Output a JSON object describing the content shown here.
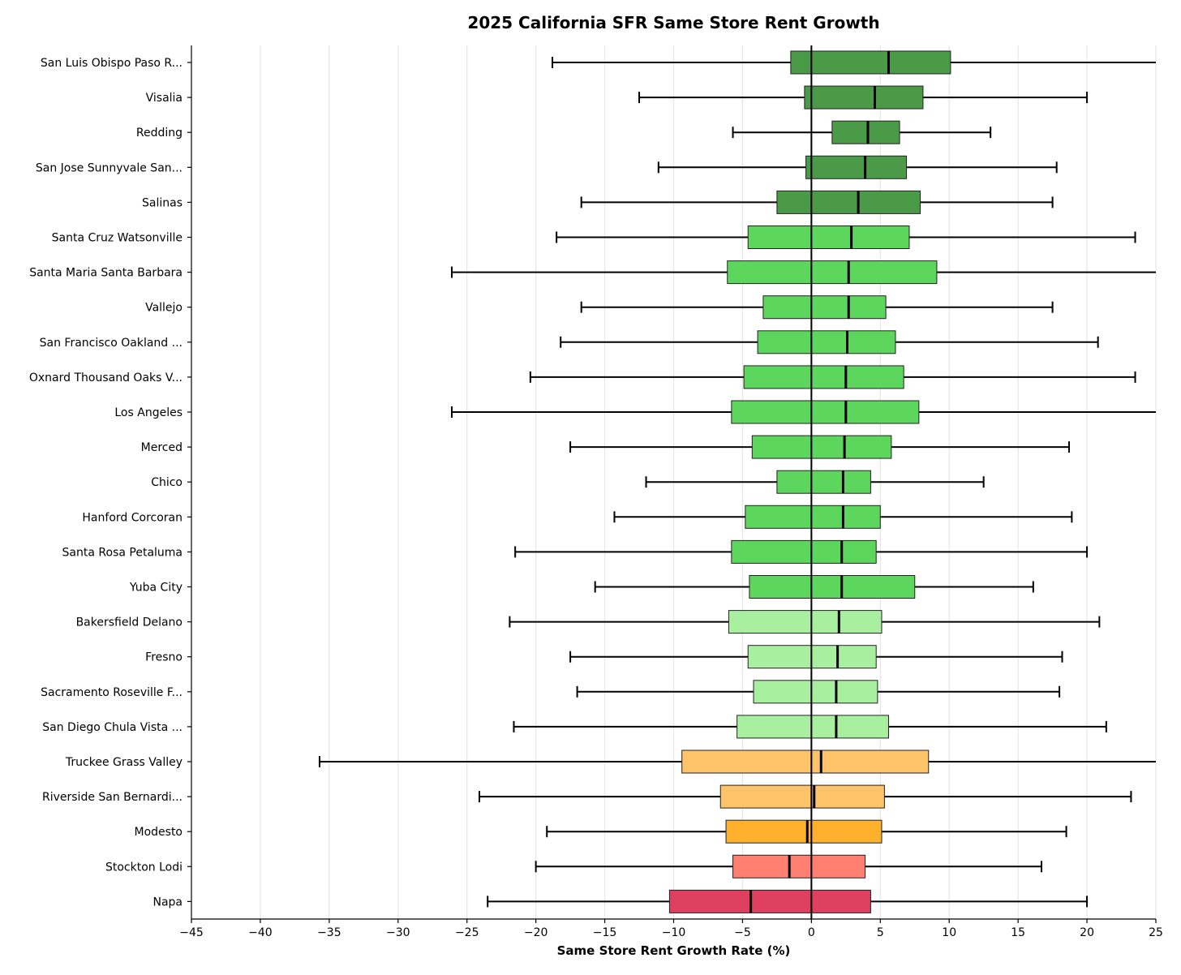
{
  "chart_data": {
    "type": "boxplot-horizontal",
    "title": "2025 California SFR Same Store Rent Growth",
    "xlabel": "Same Store Rent Growth Rate (%)",
    "ylabel": "",
    "xlim": [
      -45,
      25
    ],
    "xticks": [
      -45,
      -40,
      -35,
      -30,
      -25,
      -20,
      -15,
      -10,
      -5,
      0,
      5,
      10,
      15,
      20,
      25
    ],
    "grid": "vertical",
    "colors": {
      "dark_green": "#4a9a48",
      "green": "#5cd65c",
      "light_green": "#a8f0a0",
      "light_orange": "#ffc46a",
      "orange": "#ffb12e",
      "salmon": "#ff8070",
      "crimson": "#e0405f"
    },
    "rows": [
      {
        "name": "San Luis Obispo Paso R...",
        "whisker_low": -18.8,
        "q1": -1.5,
        "median": 5.6,
        "q3": 10.1,
        "whisker_high": 25,
        "color": "dark_green"
      },
      {
        "name": "Visalia",
        "whisker_low": -12.5,
        "q1": -0.5,
        "median": 4.6,
        "q3": 8.1,
        "whisker_high": 20.0,
        "color": "dark_green"
      },
      {
        "name": "Redding",
        "whisker_low": -5.7,
        "q1": 1.5,
        "median": 4.1,
        "q3": 6.4,
        "whisker_high": 13.0,
        "color": "dark_green"
      },
      {
        "name": "San Jose Sunnyvale San...",
        "whisker_low": -11.1,
        "q1": -0.4,
        "median": 3.9,
        "q3": 6.9,
        "whisker_high": 17.8,
        "color": "dark_green"
      },
      {
        "name": "Salinas",
        "whisker_low": -16.7,
        "q1": -2.5,
        "median": 3.4,
        "q3": 7.9,
        "whisker_high": 17.5,
        "color": "dark_green"
      },
      {
        "name": "Santa Cruz Watsonville",
        "whisker_low": -18.5,
        "q1": -4.6,
        "median": 2.9,
        "q3": 7.1,
        "whisker_high": 23.5,
        "color": "green"
      },
      {
        "name": "Santa Maria Santa Barbara",
        "whisker_low": -26.1,
        "q1": -6.1,
        "median": 2.7,
        "q3": 9.1,
        "whisker_high": 25,
        "color": "green"
      },
      {
        "name": "Vallejo",
        "whisker_low": -16.7,
        "q1": -3.5,
        "median": 2.7,
        "q3": 5.4,
        "whisker_high": 17.5,
        "color": "green"
      },
      {
        "name": "San Francisco Oakland ...",
        "whisker_low": -18.2,
        "q1": -3.9,
        "median": 2.6,
        "q3": 6.1,
        "whisker_high": 20.8,
        "color": "green"
      },
      {
        "name": "Oxnard Thousand Oaks V...",
        "whisker_low": -20.4,
        "q1": -4.9,
        "median": 2.5,
        "q3": 6.7,
        "whisker_high": 23.5,
        "color": "green"
      },
      {
        "name": "Los Angeles",
        "whisker_low": -26.1,
        "q1": -5.8,
        "median": 2.5,
        "q3": 7.8,
        "whisker_high": 25,
        "color": "green"
      },
      {
        "name": "Merced",
        "whisker_low": -17.5,
        "q1": -4.3,
        "median": 2.4,
        "q3": 5.8,
        "whisker_high": 18.7,
        "color": "green"
      },
      {
        "name": "Chico",
        "whisker_low": -12.0,
        "q1": -2.5,
        "median": 2.3,
        "q3": 4.3,
        "whisker_high": 12.5,
        "color": "green"
      },
      {
        "name": "Hanford Corcoran",
        "whisker_low": -14.3,
        "q1": -4.8,
        "median": 2.3,
        "q3": 5.0,
        "whisker_high": 18.9,
        "color": "green"
      },
      {
        "name": "Santa Rosa Petaluma",
        "whisker_low": -21.5,
        "q1": -5.8,
        "median": 2.2,
        "q3": 4.7,
        "whisker_high": 20.0,
        "color": "green"
      },
      {
        "name": "Yuba City",
        "whisker_low": -15.7,
        "q1": -4.5,
        "median": 2.2,
        "q3": 7.5,
        "whisker_high": 16.1,
        "color": "green"
      },
      {
        "name": "Bakersfield Delano",
        "whisker_low": -21.9,
        "q1": -6.0,
        "median": 2.0,
        "q3": 5.1,
        "whisker_high": 20.9,
        "color": "light_green"
      },
      {
        "name": "Fresno",
        "whisker_low": -17.5,
        "q1": -4.6,
        "median": 1.9,
        "q3": 4.7,
        "whisker_high": 18.2,
        "color": "light_green"
      },
      {
        "name": "Sacramento Roseville F...",
        "whisker_low": -17.0,
        "q1": -4.2,
        "median": 1.8,
        "q3": 4.8,
        "whisker_high": 18.0,
        "color": "light_green"
      },
      {
        "name": "San Diego Chula Vista ...",
        "whisker_low": -21.6,
        "q1": -5.4,
        "median": 1.8,
        "q3": 5.6,
        "whisker_high": 21.4,
        "color": "light_green"
      },
      {
        "name": "Truckee Grass Valley",
        "whisker_low": -35.7,
        "q1": -9.4,
        "median": 0.7,
        "q3": 8.5,
        "whisker_high": 25,
        "color": "light_orange"
      },
      {
        "name": "Riverside San Bernardi...",
        "whisker_low": -24.1,
        "q1": -6.6,
        "median": 0.2,
        "q3": 5.3,
        "whisker_high": 23.2,
        "color": "light_orange"
      },
      {
        "name": "Modesto",
        "whisker_low": -19.2,
        "q1": -6.2,
        "median": -0.3,
        "q3": 5.1,
        "whisker_high": 18.5,
        "color": "orange"
      },
      {
        "name": "Stockton Lodi",
        "whisker_low": -20.0,
        "q1": -5.7,
        "median": -1.6,
        "q3": 3.9,
        "whisker_high": 16.7,
        "color": "salmon"
      },
      {
        "name": "Napa",
        "whisker_low": -23.5,
        "q1": -10.3,
        "median": -4.4,
        "q3": 4.3,
        "whisker_high": 20.0,
        "color": "crimson"
      }
    ]
  }
}
